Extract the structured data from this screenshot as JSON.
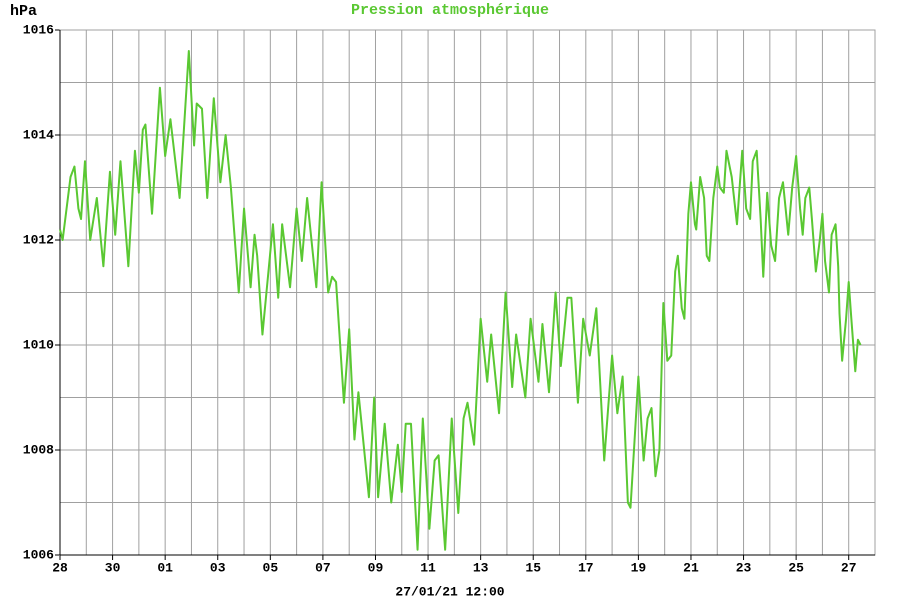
{
  "chart_data": {
    "type": "line",
    "title": "Pression atmosphérique",
    "y_label": "hPa",
    "x_label": "27/01/21 12:00",
    "color": "#5ac832",
    "grid": true,
    "xlim": [
      0,
      31
    ],
    "ylim": [
      1006,
      1016
    ],
    "yticks": [
      1006,
      1008,
      1010,
      1012,
      1014,
      1016
    ],
    "minor_yticks": [
      1007,
      1009,
      1011,
      1013,
      1015
    ],
    "xticks": [
      {
        "value": 0,
        "label": "28"
      },
      {
        "value": 2,
        "label": "30"
      },
      {
        "value": 4,
        "label": "01"
      },
      {
        "value": 6,
        "label": "03"
      },
      {
        "value": 8,
        "label": "05"
      },
      {
        "value": 10,
        "label": "07"
      },
      {
        "value": 12,
        "label": "09"
      },
      {
        "value": 14,
        "label": "11"
      },
      {
        "value": 16,
        "label": "13"
      },
      {
        "value": 18,
        "label": "15"
      },
      {
        "value": 20,
        "label": "17"
      },
      {
        "value": 22,
        "label": "19"
      },
      {
        "value": 24,
        "label": "21"
      },
      {
        "value": 26,
        "label": "23"
      },
      {
        "value": 28,
        "label": "25"
      },
      {
        "value": 30,
        "label": "27"
      }
    ],
    "minor_xticks": [
      1,
      3,
      5,
      7,
      9,
      11,
      13,
      15,
      17,
      19,
      21,
      23,
      25,
      27,
      29
    ],
    "x": [
      0,
      0.1,
      0.4,
      0.55,
      0.7,
      0.8,
      0.95,
      1.15,
      1.4,
      1.65,
      1.9,
      2.1,
      2.3,
      2.6,
      2.85,
      3.0,
      3.15,
      3.25,
      3.5,
      3.8,
      4.0,
      4.2,
      4.55,
      4.9,
      5.1,
      5.2,
      5.4,
      5.6,
      5.85,
      6.1,
      6.3,
      6.5,
      6.8,
      7.0,
      7.25,
      7.4,
      7.5,
      7.7,
      8.1,
      8.3,
      8.45,
      8.75,
      9.0,
      9.2,
      9.4,
      9.75,
      9.95,
      10.2,
      10.35,
      10.5,
      10.8,
      11.0,
      11.2,
      11.35,
      11.75,
      11.95,
      12.1,
      12.35,
      12.6,
      12.85,
      13.0,
      13.15,
      13.35,
      13.6,
      13.8,
      14.05,
      14.25,
      14.4,
      14.65,
      14.9,
      15.15,
      15.35,
      15.5,
      15.75,
      16.0,
      16.25,
      16.4,
      16.7,
      16.95,
      17.2,
      17.35,
      17.7,
      17.9,
      18.2,
      18.35,
      18.6,
      18.85,
      19.05,
      19.3,
      19.45,
      19.7,
      19.9,
      20.15,
      20.4,
      20.7,
      21.0,
      21.2,
      21.4,
      21.6,
      21.7,
      22.0,
      22.2,
      22.35,
      22.5,
      22.65,
      22.8,
      22.95,
      23.1,
      23.25,
      23.4,
      23.5,
      23.65,
      23.75,
      23.9,
      24.0,
      24.15,
      24.2,
      24.35,
      24.5,
      24.6,
      24.7,
      24.85,
      25.0,
      25.1,
      25.25,
      25.35,
      25.55,
      25.75,
      25.95,
      26.1,
      26.25,
      26.35,
      26.5,
      26.65,
      26.75,
      26.9,
      27.05,
      27.2,
      27.35,
      27.5,
      27.7,
      27.85,
      28.0,
      28.15,
      28.25,
      28.35,
      28.5,
      28.6,
      28.75,
      28.9,
      29.0,
      29.1,
      29.25,
      29.35,
      29.5,
      29.6,
      29.65,
      29.75,
      29.9,
      30.0,
      30.1,
      30.25,
      30.35,
      30.45
    ],
    "values": [
      1012.2,
      1012.0,
      1013.2,
      1013.4,
      1012.6,
      1012.4,
      1013.5,
      1012.0,
      1012.8,
      1011.5,
      1013.3,
      1012.1,
      1013.5,
      1011.5,
      1013.7,
      1012.9,
      1014.1,
      1014.2,
      1012.5,
      1014.9,
      1013.6,
      1014.3,
      1012.8,
      1015.6,
      1013.8,
      1014.6,
      1014.5,
      1012.8,
      1014.7,
      1013.1,
      1014.0,
      1013.0,
      1011.0,
      1012.6,
      1011.1,
      1012.1,
      1011.7,
      1010.2,
      1012.3,
      1010.9,
      1012.3,
      1011.1,
      1012.6,
      1011.6,
      1012.8,
      1011.1,
      1013.1,
      1011.0,
      1011.3,
      1011.2,
      1008.9,
      1010.3,
      1008.2,
      1009.1,
      1007.1,
      1009.0,
      1007.1,
      1008.5,
      1007.0,
      1008.1,
      1007.2,
      1008.5,
      1008.5,
      1006.1,
      1008.6,
      1006.5,
      1007.8,
      1007.9,
      1006.1,
      1008.6,
      1006.8,
      1008.6,
      1008.9,
      1008.1,
      1010.5,
      1009.3,
      1010.2,
      1008.7,
      1011.0,
      1009.2,
      1010.2,
      1009.0,
      1010.5,
      1009.3,
      1010.4,
      1009.1,
      1011.0,
      1009.6,
      1010.9,
      1010.9,
      1008.9,
      1010.5,
      1009.8,
      1010.7,
      1007.8,
      1009.8,
      1008.7,
      1009.4,
      1007.0,
      1006.9,
      1009.4,
      1007.8,
      1008.6,
      1008.8,
      1007.5,
      1008.0,
      1010.8,
      1009.7,
      1009.8,
      1011.4,
      1011.7,
      1010.7,
      1010.5,
      1012.5,
      1013.1,
      1012.3,
      1012.2,
      1013.2,
      1012.8,
      1011.7,
      1011.6,
      1012.8,
      1013.4,
      1013.0,
      1012.9,
      1013.7,
      1013.2,
      1012.3,
      1013.7,
      1012.6,
      1012.4,
      1013.5,
      1013.7,
      1012.4,
      1011.3,
      1012.9,
      1011.9,
      1011.6,
      1012.8,
      1013.1,
      1012.1,
      1013.0,
      1013.6,
      1012.6,
      1012.1,
      1012.8,
      1013.0,
      1012.4,
      1011.4,
      1012.0,
      1012.5,
      1011.6,
      1011.0,
      1012.1,
      1012.3,
      1011.5,
      1010.6,
      1009.7,
      1010.5,
      1011.2,
      1010.5,
      1009.5,
      1010.1,
      1010.0
    ]
  }
}
